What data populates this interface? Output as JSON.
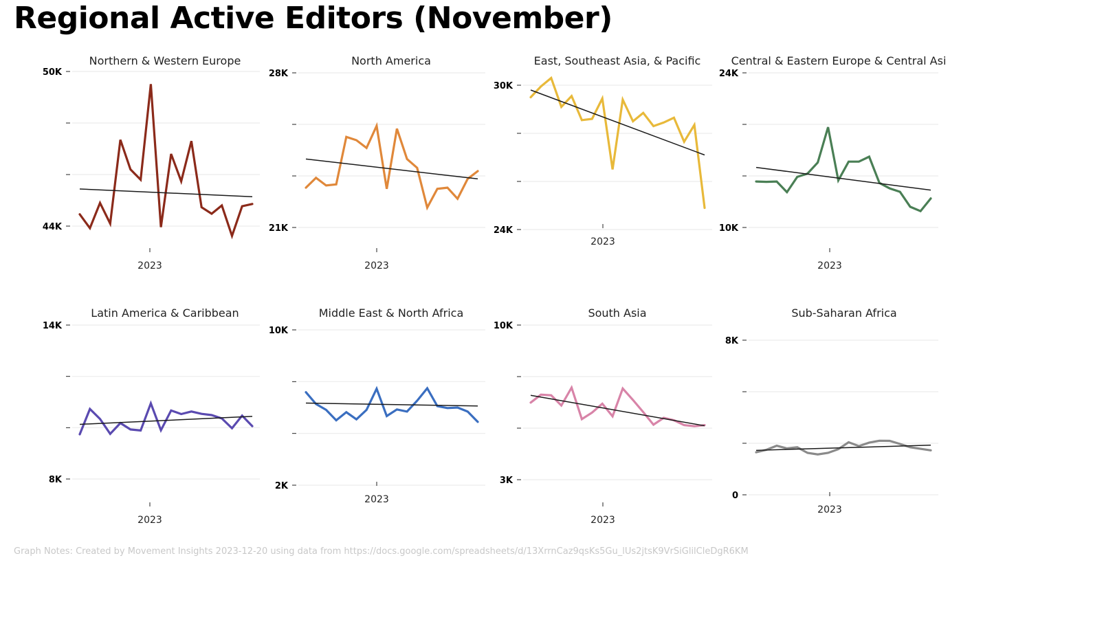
{
  "title": "Regional Active Editors (November)",
  "notes": "Graph Notes: Created by Movement Insights 2023-12-20 using data from https://docs.google.com/spreadsheets/d/13XrrnCaz9qsKs5Gu_lUs2jtsK9VrSiGlilCleDgR6KM",
  "chart_data": [
    {
      "type": "line",
      "title": "Northern & Western Europe",
      "color": "#8b2a1a",
      "x_tick_label": "2023",
      "y_tick_labels": [
        "44K",
        "50K"
      ],
      "ylim": [
        44000,
        50000
      ],
      "values": [
        44460,
        43920,
        44900,
        44100,
        47350,
        46200,
        45800,
        49510,
        43960,
        46800,
        45740,
        47300,
        44730,
        44480,
        44800,
        43620,
        44770,
        44860
      ],
      "trend": [
        45440,
        45140
      ]
    },
    {
      "type": "line",
      "title": "North America",
      "color": "#e0883a",
      "x_tick_label": "2023",
      "y_tick_labels": [
        "21K",
        "28K"
      ],
      "ylim": [
        21000,
        28000
      ],
      "values": [
        22800,
        23250,
        22900,
        22950,
        25100,
        24950,
        24600,
        25600,
        22750,
        25470,
        24100,
        23700,
        21900,
        22750,
        22800,
        22300,
        23200,
        23550
      ],
      "trend": [
        24100,
        23200
      ]
    },
    {
      "type": "line",
      "title": "East, Southeast Asia, & Pacific",
      "color": "#e8b93a",
      "x_tick_label": "2023",
      "y_tick_labels": [
        "24K",
        "30K"
      ],
      "ylim": [
        24000,
        30000
      ],
      "values": [
        29500,
        29950,
        30300,
        29100,
        29550,
        28550,
        28600,
        29450,
        26500,
        29400,
        28500,
        28850,
        28300,
        28450,
        28650,
        27650,
        28350,
        24900
      ],
      "trend": [
        29800,
        27100
      ]
    },
    {
      "type": "line",
      "title": "Central & Eastern Europe & Central Asi",
      "color": "#4a7f55",
      "x_tick_label": "2023",
      "y_tick_labels": [
        "10K",
        "24K"
      ],
      "ylim": [
        10000,
        24000
      ],
      "values": [
        14160,
        14130,
        14160,
        13200,
        14580,
        14880,
        15880,
        19080,
        14260,
        15960,
        15960,
        16410,
        14030,
        13540,
        13230,
        11870,
        11480,
        12630
      ],
      "trend": [
        15440,
        13380
      ]
    },
    {
      "type": "line",
      "title": "Latin America & Caribbean",
      "color": "#5a4ab0",
      "x_tick_label": "2023",
      "y_tick_labels": [
        "8K",
        "14K"
      ],
      "ylim": [
        8000,
        14000
      ],
      "values": [
        9740,
        10730,
        10340,
        9760,
        10180,
        9930,
        9890,
        10950,
        9900,
        10670,
        10530,
        10630,
        10540,
        10490,
        10360,
        9980,
        10470,
        10060
      ],
      "trend": [
        10130,
        10440
      ]
    },
    {
      "type": "line",
      "title": "Middle East & North Africa",
      "color": "#3a6ec0",
      "x_tick_label": "2023",
      "y_tick_labels": [
        "2K",
        "10K"
      ],
      "ylim": [
        2000,
        10000
      ],
      "values": [
        6790,
        6180,
        5880,
        5340,
        5760,
        5390,
        5880,
        6970,
        5560,
        5900,
        5790,
        6350,
        6990,
        6070,
        5970,
        6000,
        5790,
        5260
      ],
      "trend": [
        6230,
        6080
      ]
    },
    {
      "type": "line",
      "title": "South Asia",
      "color": "#d884a8",
      "x_tick_label": "2023",
      "y_tick_labels": [
        "3K",
        "10K"
      ],
      "ylim": [
        3000,
        10000
      ],
      "values": [
        6490,
        6850,
        6820,
        6360,
        7170,
        5740,
        6040,
        6440,
        5870,
        7130,
        6610,
        6060,
        5490,
        5800,
        5690,
        5470,
        5420,
        5470
      ],
      "trend": [
        6820,
        5440
      ]
    },
    {
      "type": "line",
      "title": "Sub-Saharan Africa",
      "color": "#8a8a8a",
      "x_tick_label": "2023",
      "y_tick_labels": [
        "0",
        "8K"
      ],
      "ylim": [
        0,
        8000
      ],
      "values": [
        2200,
        2330,
        2540,
        2400,
        2460,
        2170,
        2090,
        2170,
        2360,
        2720,
        2520,
        2700,
        2800,
        2790,
        2630,
        2460,
        2380,
        2300
      ],
      "trend": [
        2300,
        2570
      ]
    }
  ]
}
